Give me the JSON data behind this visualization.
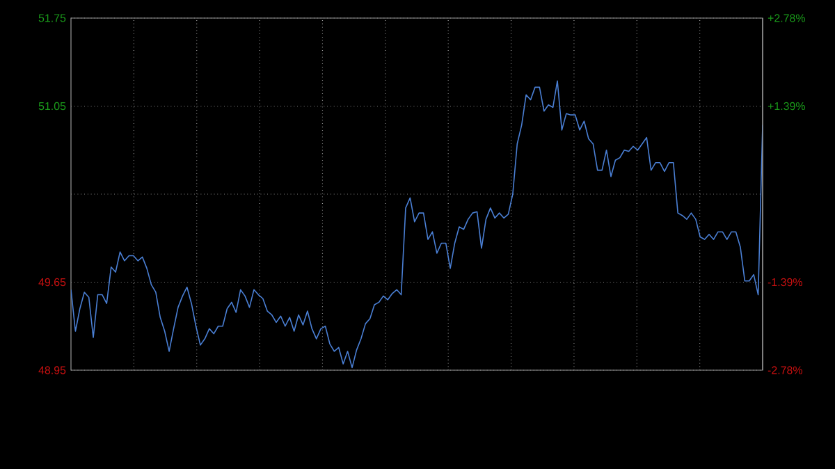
{
  "chart_data": {
    "type": "line",
    "grid": true,
    "categories": [
      null,
      null,
      null,
      null,
      null,
      null,
      null,
      null,
      null,
      null,
      null,
      null,
      null,
      null,
      null,
      null,
      null,
      null,
      null,
      null,
      null,
      null,
      null,
      null,
      null,
      null,
      null,
      null,
      null,
      null,
      null,
      null,
      null,
      null,
      null,
      null,
      null,
      null,
      null,
      null,
      null,
      null,
      null,
      null,
      null,
      null,
      null,
      null,
      null,
      null,
      null,
      null,
      null,
      null,
      null,
      null,
      null,
      null,
      null,
      null,
      null,
      null,
      null,
      null,
      null,
      null,
      null,
      null,
      null,
      null,
      null,
      null,
      null,
      null,
      null,
      null,
      null,
      null,
      null,
      null,
      null,
      null,
      null,
      null,
      null,
      null,
      null,
      null,
      null,
      null,
      null,
      null,
      null,
      null,
      null,
      null,
      null,
      null,
      null,
      null,
      null,
      null,
      null,
      null,
      null,
      null,
      null,
      null,
      null,
      null,
      null,
      null,
      null,
      null,
      null,
      null,
      null,
      null,
      null,
      null,
      null,
      null,
      null,
      null,
      null,
      null,
      null,
      null,
      null,
      null,
      null,
      null,
      null,
      null,
      null,
      null,
      null,
      null,
      null,
      null,
      null,
      null,
      null,
      null,
      null,
      null,
      null,
      null,
      null,
      null,
      null,
      null,
      null,
      null,
      null,
      null
    ],
    "series": [
      {
        "color": "#4a7fd4",
        "values": [
          49.59,
          49.26,
          49.44,
          49.57,
          49.53,
          49.21,
          49.55,
          49.55,
          49.48,
          49.77,
          49.73,
          49.89,
          49.82,
          49.86,
          49.86,
          49.82,
          49.85,
          49.76,
          49.63,
          49.57,
          49.37,
          49.26,
          49.1,
          49.28,
          49.45,
          49.54,
          49.61,
          49.48,
          49.3,
          49.15,
          49.2,
          49.28,
          49.24,
          49.3,
          49.3,
          49.44,
          49.49,
          49.41,
          49.59,
          49.54,
          49.45,
          49.59,
          49.55,
          49.52,
          49.42,
          49.39,
          49.33,
          49.38,
          49.3,
          49.37,
          49.26,
          49.39,
          49.31,
          49.42,
          49.28,
          49.2,
          49.28,
          49.3,
          49.16,
          49.1,
          49.13,
          49.0,
          49.1,
          48.97,
          49.11,
          49.2,
          49.32,
          49.36,
          49.47,
          49.49,
          49.54,
          49.51,
          49.56,
          49.59,
          49.55,
          50.24,
          50.32,
          50.13,
          50.2,
          50.2,
          49.99,
          50.05,
          49.88,
          49.96,
          49.96,
          49.76,
          49.96,
          50.09,
          50.07,
          50.15,
          50.2,
          50.21,
          49.92,
          50.15,
          50.24,
          50.16,
          50.2,
          50.16,
          50.19,
          50.35,
          50.75,
          50.9,
          51.14,
          51.1,
          51.2,
          51.2,
          51.01,
          51.06,
          51.04,
          51.25,
          50.86,
          50.99,
          50.98,
          50.98,
          50.86,
          50.93,
          50.79,
          50.75,
          50.54,
          50.54,
          50.7,
          50.49,
          50.62,
          50.64,
          50.7,
          50.69,
          50.73,
          50.7,
          50.75,
          50.8,
          50.54,
          50.6,
          50.6,
          50.53,
          50.6,
          50.6,
          50.2,
          50.18,
          50.15,
          50.2,
          50.15,
          50.01,
          49.99,
          50.03,
          49.99,
          50.05,
          50.05,
          49.99,
          50.05,
          50.05,
          49.93,
          49.66,
          49.66,
          49.71,
          49.55,
          50.9
        ]
      }
    ],
    "ylim": [
      48.95,
      51.75
    ],
    "yticks": [
      48.95,
      49.65,
      {
        "value": 50.35,
        "label": null
      },
      51.05,
      51.75
    ],
    "y2lim": [
      -2.78,
      2.78
    ],
    "y2ticks": [
      {
        "value": -2.78,
        "label": "-2.78%"
      },
      {
        "value": -1.39,
        "label": "-1.39%"
      },
      {
        "value": 0,
        "label": null
      },
      {
        "value": 1.39,
        "label": "+1.39%"
      },
      {
        "value": 2.78,
        "label": "+2.78%"
      }
    ]
  }
}
